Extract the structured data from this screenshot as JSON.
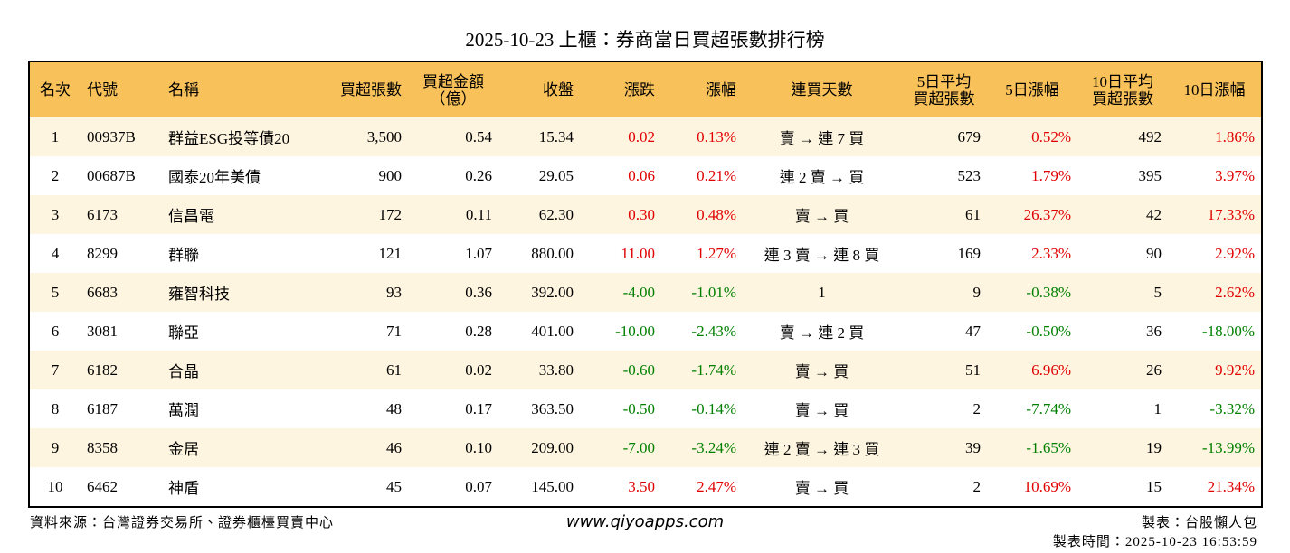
{
  "header": {
    "title": "2025-10-23 上櫃：券商當日買超張數排行榜"
  },
  "table": {
    "headers": [
      "名次",
      "代號",
      "名稱",
      "買超張數",
      "買超金額\n（億）",
      "收盤",
      "漲跌",
      "漲幅",
      "連買天數",
      "5日平均\n買超張數",
      "5日漲幅",
      "10日平均\n買超張數",
      "10日漲幅"
    ],
    "rows": [
      [
        "1",
        "00937B",
        "群益ESG投等債20",
        "3,500",
        "0.54",
        "15.34",
        "0.02",
        "0.13%",
        "賣 → 連 7 買",
        "679",
        "0.52%",
        "492",
        "1.86%"
      ],
      [
        "2",
        "00687B",
        "國泰20年美債",
        "900",
        "0.26",
        "29.05",
        "0.06",
        "0.21%",
        "連 2 賣 → 買",
        "523",
        "1.79%",
        "395",
        "3.97%"
      ],
      [
        "3",
        "6173",
        "信昌電",
        "172",
        "0.11",
        "62.30",
        "0.30",
        "0.48%",
        "賣 → 買",
        "61",
        "26.37%",
        "42",
        "17.33%"
      ],
      [
        "4",
        "8299",
        "群聯",
        "121",
        "1.07",
        "880.00",
        "11.00",
        "1.27%",
        "連 3 賣 → 連 8 買",
        "169",
        "2.33%",
        "90",
        "2.92%"
      ],
      [
        "5",
        "6683",
        "雍智科技",
        "93",
        "0.36",
        "392.00",
        "-4.00",
        "-1.01%",
        "1",
        "9",
        "-0.38%",
        "5",
        "2.62%"
      ],
      [
        "6",
        "3081",
        "聯亞",
        "71",
        "0.28",
        "401.00",
        "-10.00",
        "-2.43%",
        "賣 → 連 2 買",
        "47",
        "-0.50%",
        "36",
        "-18.00%"
      ],
      [
        "7",
        "6182",
        "合晶",
        "61",
        "0.02",
        "33.80",
        "-0.60",
        "-1.74%",
        "賣 → 買",
        "51",
        "6.96%",
        "26",
        "9.92%"
      ],
      [
        "8",
        "6187",
        "萬潤",
        "48",
        "0.17",
        "363.50",
        "-0.50",
        "-0.14%",
        "賣 → 買",
        "2",
        "-7.74%",
        "1",
        "-3.32%"
      ],
      [
        "9",
        "8358",
        "金居",
        "46",
        "0.10",
        "209.00",
        "-7.00",
        "-3.24%",
        "連 2 賣 → 連 3 買",
        "39",
        "-1.65%",
        "19",
        "-13.99%"
      ],
      [
        "10",
        "6462",
        "神盾",
        "45",
        "0.07",
        "145.00",
        "3.50",
        "2.47%",
        "賣 → 買",
        "2",
        "10.69%",
        "15",
        "21.34%"
      ]
    ]
  },
  "footer": {
    "source": "資料來源：台灣證券交易所、證券櫃檯買賣中心",
    "site": "www.qiyoapps.com",
    "maker": "製表：台股懶人包",
    "time": "製表時間：2025-10-23 16:53:59"
  }
}
